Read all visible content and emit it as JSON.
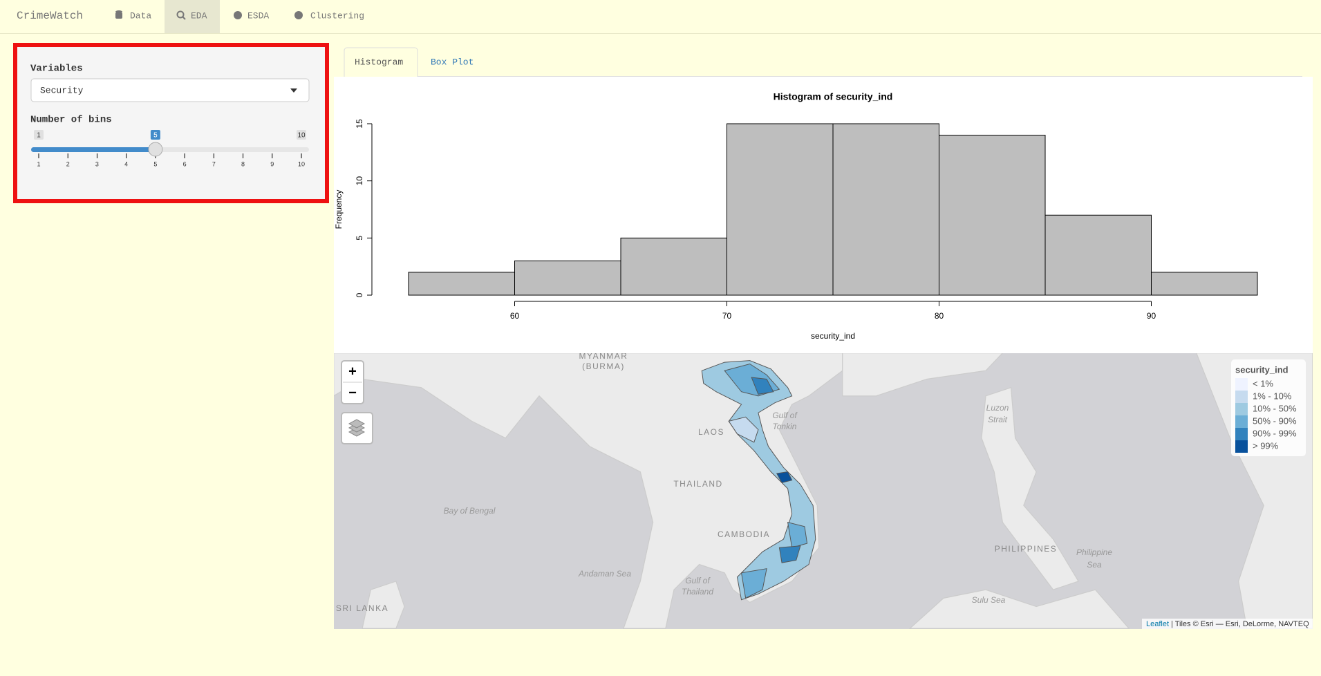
{
  "nav": {
    "brand": "CrimeWatch",
    "items": [
      "Data",
      "EDA",
      "ESDA",
      "Clustering"
    ]
  },
  "sidebar": {
    "variables_label": "Variables",
    "select_value": "Security",
    "bins_label": "Number of bins",
    "slider": {
      "min": 1,
      "max": 10,
      "value": 5,
      "ticks": [
        1,
        2,
        3,
        4,
        5,
        6,
        7,
        8,
        9,
        10
      ]
    }
  },
  "tabs": [
    "Histogram",
    "Box Plot"
  ],
  "histogram": {
    "type": "histogram",
    "title": "Histogram of security_ind",
    "x_label": "security_ind",
    "y_label": "Frequency",
    "bins": [
      55,
      60,
      65,
      70,
      75,
      80,
      85,
      90,
      95
    ],
    "values": [
      2,
      3,
      5,
      15,
      15,
      14,
      7,
      2
    ],
    "color": "#bebebe",
    "xlim": [
      55,
      95
    ],
    "ylim": [
      0,
      15
    ],
    "xticks": [
      60,
      70,
      80,
      90
    ],
    "yticks": [
      0,
      5,
      10,
      15
    ]
  },
  "map": {
    "labels": [
      "MYANMAR",
      "(BURMA)",
      "LAOS",
      "THAILAND",
      "CAMBODIA",
      "Bay of Bengal",
      "Andaman Sea",
      "Gulf of",
      "Thailand",
      "SRI LANKA",
      "Gulf of",
      "Tonkin",
      "Luzon",
      "Strait",
      "PHILIPPINES",
      "Philippine",
      "Sea",
      "Sulu Sea"
    ],
    "zoom": [
      "+",
      "−"
    ],
    "legend": {
      "title": "security_ind",
      "items": [
        {
          "label": "< 1%",
          "color": "#eff3ff"
        },
        {
          "label": "1% - 10%",
          "color": "#c6dbef"
        },
        {
          "label": "10% - 50%",
          "color": "#9ecae1"
        },
        {
          "label": "50% - 90%",
          "color": "#6baed6"
        },
        {
          "label": "90% - 99%",
          "color": "#3182bd"
        },
        {
          "label": "> 99%",
          "color": "#08519c"
        }
      ]
    },
    "attribution": {
      "link": "Leaflet",
      "text": "| Tiles © Esri — Esri, DeLorme, NAVTEQ"
    }
  }
}
